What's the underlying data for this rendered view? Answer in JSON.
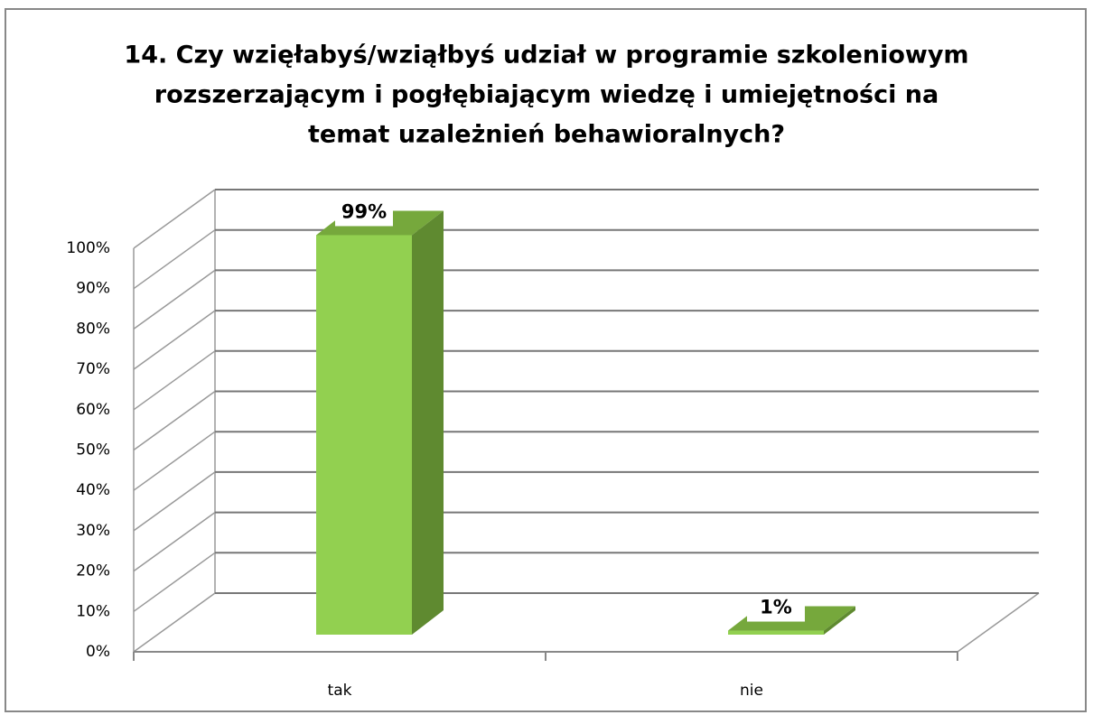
{
  "chart_data": {
    "type": "bar3d",
    "title": [
      "14. Czy wzięłabyś/wziąłbyś udział w programie szkoleniowym",
      "rozszerzającym i pogłębiającym wiedzę i umiejętności na",
      "temat uzależnień behawioralnych?"
    ],
    "categories": [
      "tak",
      "nie"
    ],
    "values": [
      99,
      1
    ],
    "value_labels": [
      "99%",
      "1%"
    ],
    "color": "#92d050",
    "ylim": [
      0,
      100
    ],
    "yticks": [
      {
        "value": 0,
        "label": "0%"
      },
      {
        "value": 10,
        "label": "10%"
      },
      {
        "value": 20,
        "label": "20%"
      },
      {
        "value": 30,
        "label": "30%"
      },
      {
        "value": 40,
        "label": "40%"
      },
      {
        "value": 50,
        "label": "50%"
      },
      {
        "value": 60,
        "label": "60%"
      },
      {
        "value": 70,
        "label": "70%"
      },
      {
        "value": 80,
        "label": "80%"
      },
      {
        "value": 90,
        "label": "90%"
      },
      {
        "value": 100,
        "label": "100%"
      }
    ],
    "grid": true
  }
}
